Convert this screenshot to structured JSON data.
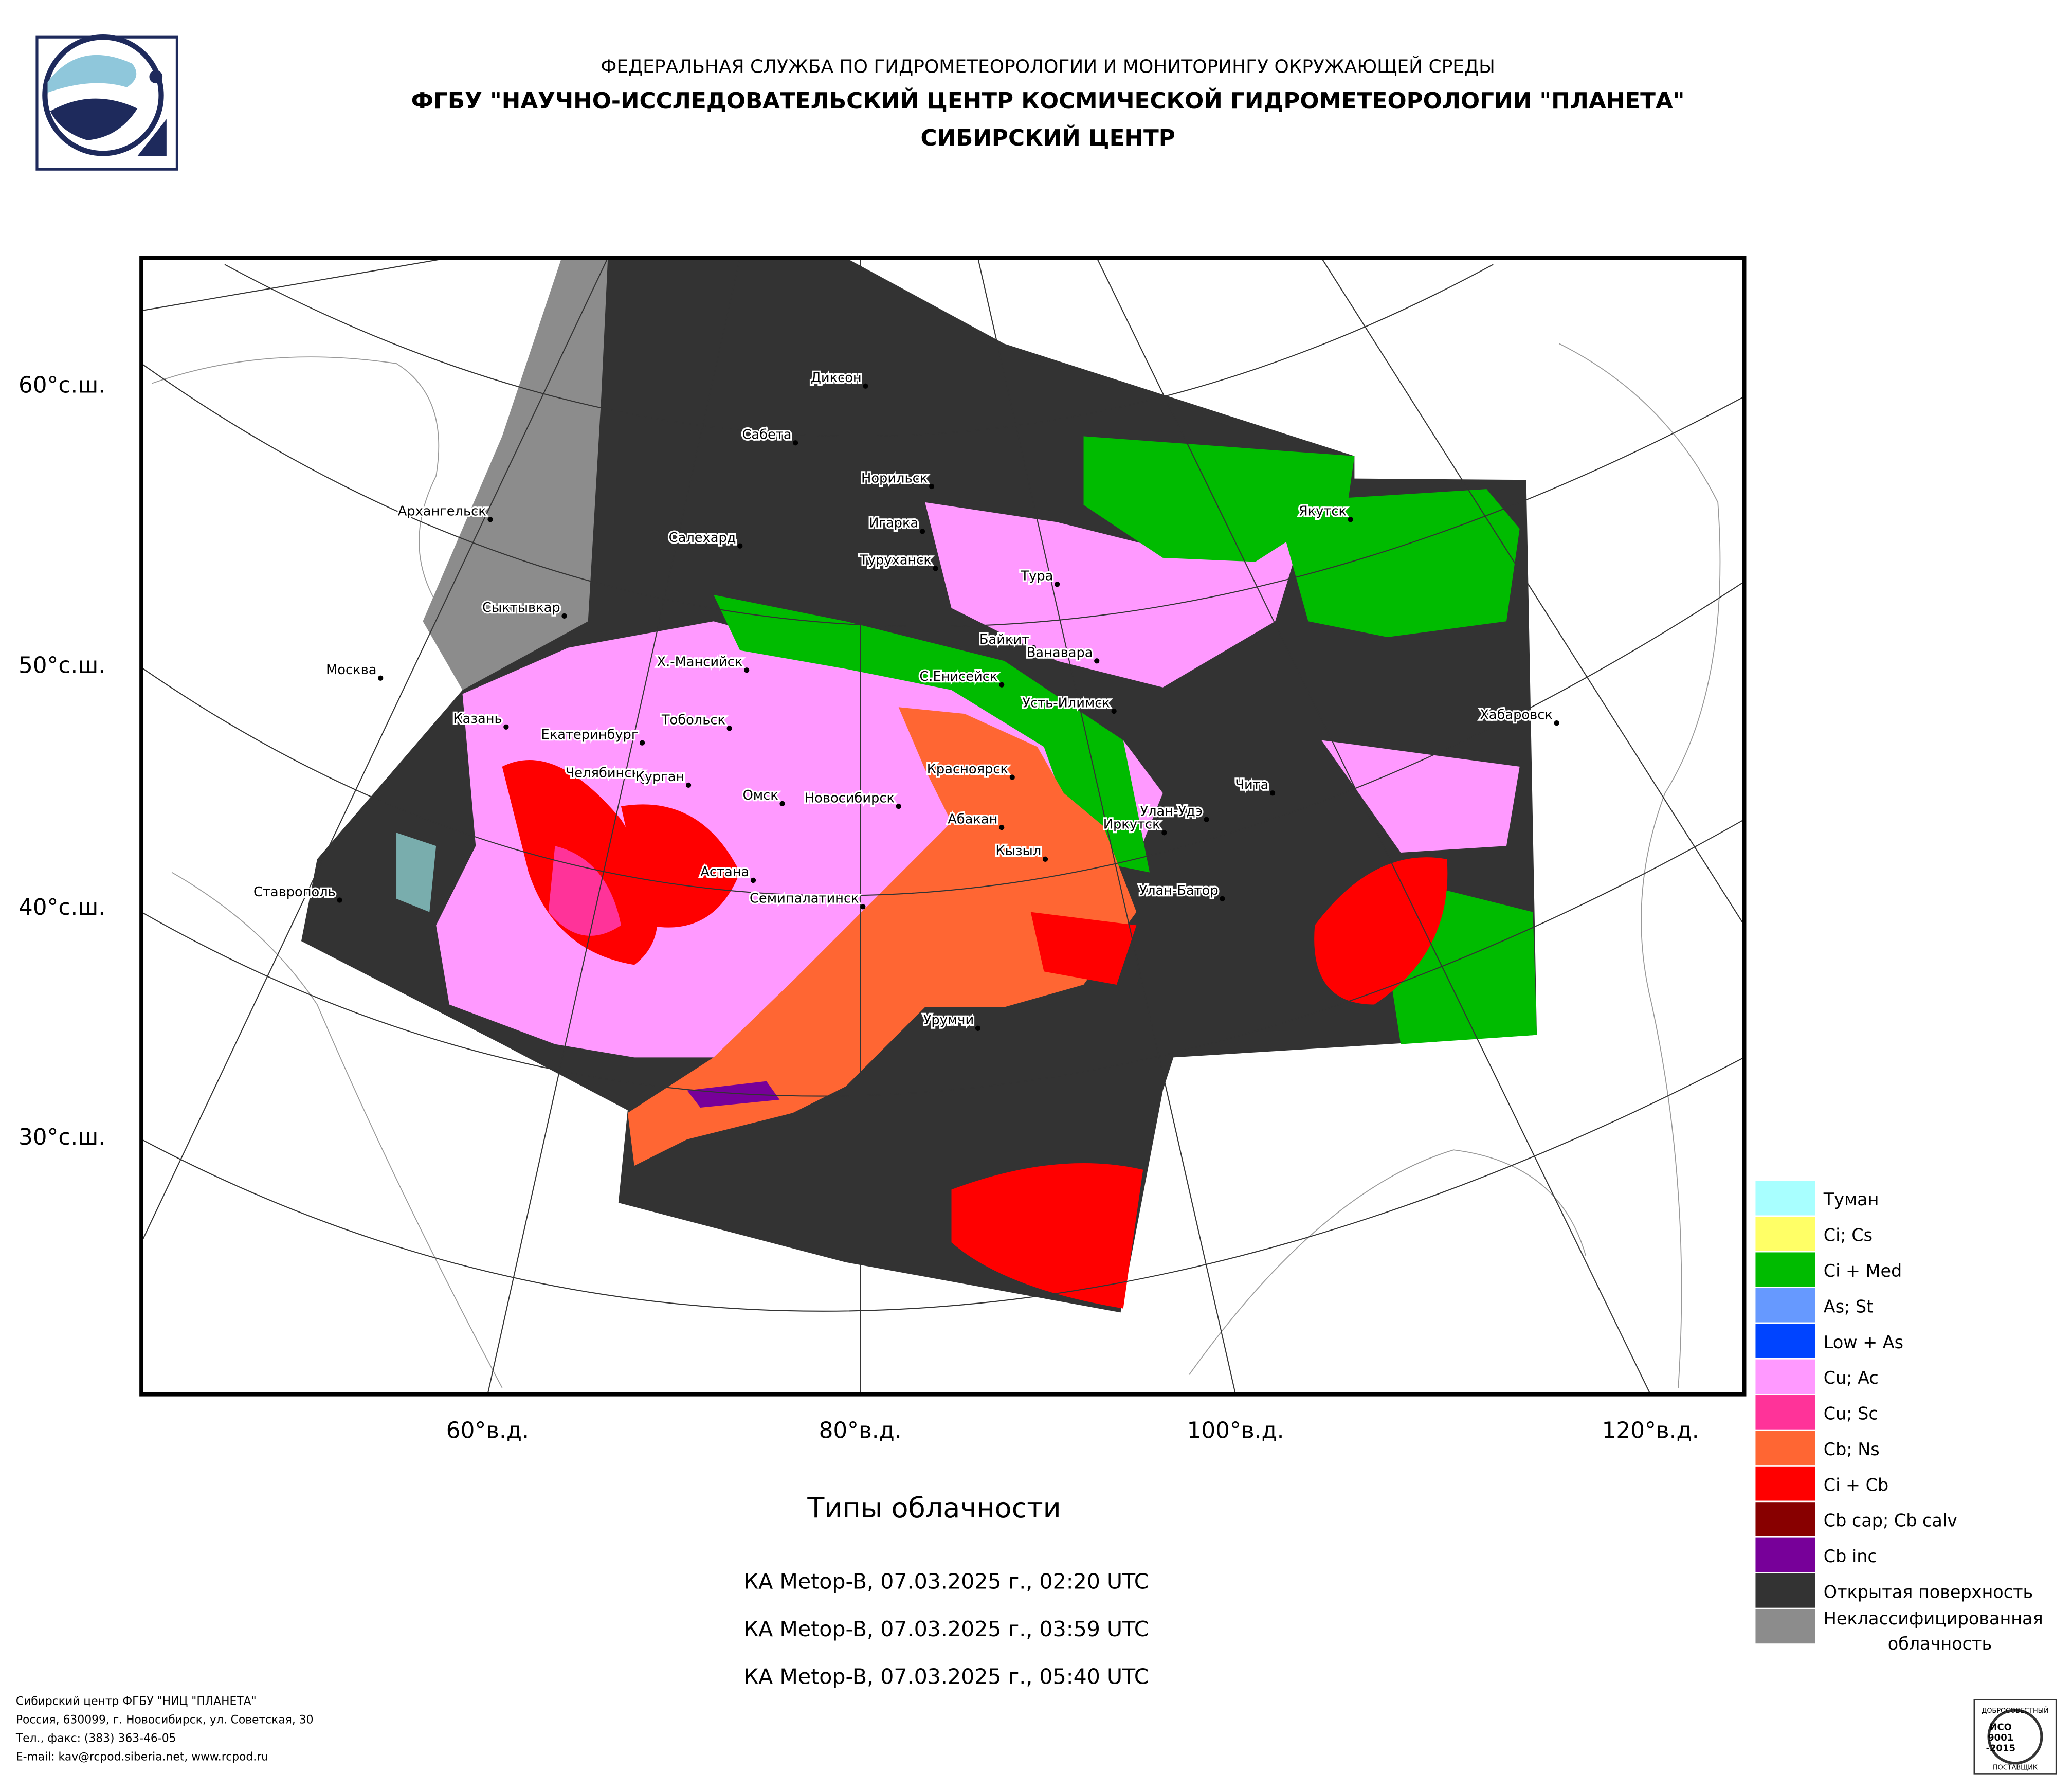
{
  "header": {
    "agency": "ФЕДЕРАЛЬНАЯ СЛУЖБА ПО ГИДРОМЕТЕОРОЛОГИИ И МОНИТОРИНГУ ОКРУЖАЮЩЕЙ СРЕДЫ",
    "institute": "ФГБУ \"НАУЧНО-ИССЛЕДОВАТЕЛЬСКИЙ ЦЕНТР КОСМИЧЕСКОЙ ГИДРОМЕТЕОРОЛОГИИ \"ПЛАНЕТА\"",
    "center": "СИБИРСКИЙ ЦЕНТР"
  },
  "map": {
    "lat_labels": [
      "60°с.ш.",
      "50°с.ш.",
      "40°с.ш.",
      "30°с.ш."
    ],
    "lon_labels": [
      "60°в.д.",
      "80°в.д.",
      "100°в.д.",
      "120°в.д."
    ],
    "cities": [
      "Диксон",
      "Сабета",
      "Норильск",
      "Архангельск",
      "Игарка",
      "Салехард",
      "Туруханск",
      "Тура",
      "Якутск",
      "Сыктывкар",
      "Байкит",
      "Ванавара",
      "Москва",
      "Х.-Мансийск",
      "С.Енисейск",
      "Усть-Илимск",
      "Хабаровск",
      "Казань",
      "Тобольск",
      "Екатеринбург",
      "Красноярск",
      "Челябинск",
      "Курган",
      "Чита",
      "Омск",
      "Новосибирск",
      "Улан-Удэ",
      "Абакан",
      "Иркутск",
      "Кызыл",
      "Ставрополь",
      "Астана",
      "Семипалатинск",
      "Улан-Батор",
      "Урумчи"
    ]
  },
  "caption": {
    "title": "Типы облачности",
    "passes": [
      "КА Metop-B, 07.03.2025 г., 02:20 UTC",
      "КА Metop-B, 07.03.2025 г., 03:59 UTC",
      "КА Metop-B, 07.03.2025 г., 05:40 UTC"
    ]
  },
  "legend": [
    {
      "label": "Туман",
      "color": "#a8ffff"
    },
    {
      "label": "Ci; Cs",
      "color": "#ffff66"
    },
    {
      "label": "Ci + Med",
      "color": "#00bb00"
    },
    {
      "label": "As; St",
      "color": "#6699ff"
    },
    {
      "label": "Low + As",
      "color": "#0044ff"
    },
    {
      "label": "Cu; Ac",
      "color": "#ff99ff"
    },
    {
      "label": "Cu; Sc",
      "color": "#ff3399"
    },
    {
      "label": "Cb; Ns",
      "color": "#ff6633"
    },
    {
      "label": "Ci + Cb",
      "color": "#ff0000"
    },
    {
      "label": "Cb cap; Cb calv",
      "color": "#880000"
    },
    {
      "label": "Cb inc",
      "color": "#770099"
    },
    {
      "label": "Открытая поверхность",
      "color": "#333333"
    },
    {
      "label": [
        "Неклассифицированная",
        "облачность"
      ],
      "color": "#8c8c8c"
    }
  ],
  "footer": [
    "Сибирский центр ФГБУ \"НИЦ \"ПЛАНЕТА\"",
    "Россия, 630099, г. Новосибирск, ул. Советская, 30",
    "Тел., факс: (383) 363-46-05",
    "E-mail: kav@rcpod.siberia.net, www.rcpod.ru"
  ],
  "badge": {
    "top": "ДОБРОСОВЕСТНЫЙ",
    "iso": "ИСО",
    "number": "9001",
    "year": "-2015",
    "bottom": "ПОСТАВЩИК"
  }
}
